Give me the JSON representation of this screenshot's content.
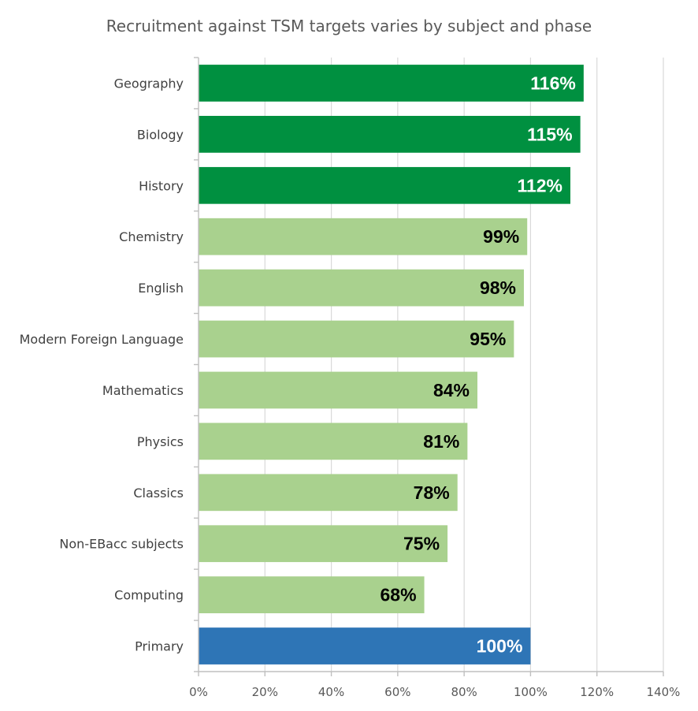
{
  "chart_data": {
    "type": "bar",
    "orientation": "horizontal",
    "title": "Recruitment against TSM targets varies by subject and phase",
    "xlabel": "",
    "ylabel": "",
    "categories": [
      "Geography",
      "Biology",
      "History",
      "Chemistry",
      "English",
      "Modern Foreign Language",
      "Mathematics",
      "Physics",
      "Classics",
      "Non-EBacc subjects",
      "Computing",
      "Primary"
    ],
    "values": [
      116,
      115,
      112,
      99,
      98,
      95,
      84,
      81,
      78,
      75,
      68,
      100
    ],
    "data_labels": [
      "116%",
      "115%",
      "112%",
      "99%",
      "98%",
      "95%",
      "84%",
      "81%",
      "78%",
      "75%",
      "68%",
      "100%"
    ],
    "bar_colors": [
      "#009040",
      "#009040",
      "#009040",
      "#a9d18e",
      "#a9d18e",
      "#a9d18e",
      "#a9d18e",
      "#a9d18e",
      "#a9d18e",
      "#a9d18e",
      "#a9d18e",
      "#2e75b6"
    ],
    "label_colors": [
      "#ffffff",
      "#ffffff",
      "#ffffff",
      "#000000",
      "#000000",
      "#000000",
      "#000000",
      "#000000",
      "#000000",
      "#000000",
      "#000000",
      "#ffffff"
    ],
    "xlim": [
      0,
      140
    ],
    "x_ticks": [
      0,
      20,
      40,
      60,
      80,
      100,
      120,
      140
    ],
    "x_tick_labels": [
      "0%",
      "20%",
      "40%",
      "60%",
      "80%",
      "100%",
      "120%",
      "140%"
    ],
    "grid": true,
    "legend": "none"
  }
}
